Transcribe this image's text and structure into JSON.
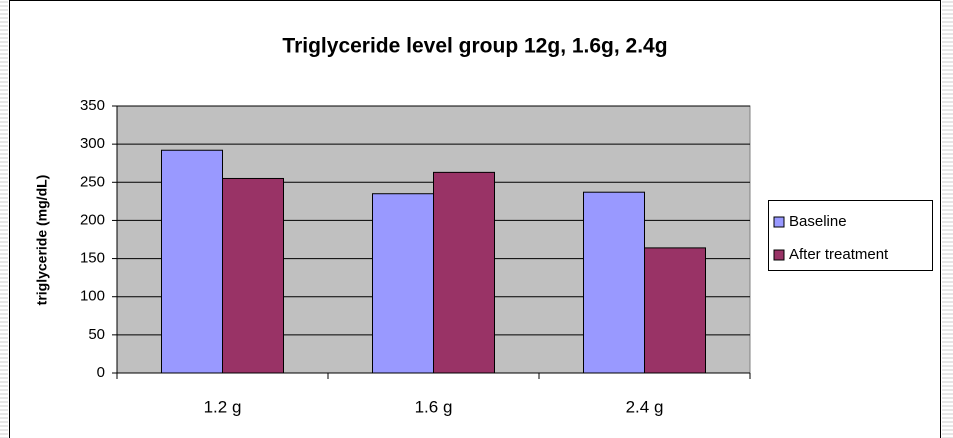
{
  "chart_data": {
    "type": "bar",
    "title": "Triglyceride level group 12g, 1.6g, 2.4g",
    "y_label": "triglyceride (mg/dL)",
    "categories": [
      "1.2 g",
      "1.6 g",
      "2.4 g"
    ],
    "series": [
      {
        "name": "Baseline",
        "color": "#9999ff",
        "values": [
          292,
          235,
          237
        ]
      },
      {
        "name": "After treatment",
        "color": "#993366",
        "values": [
          255,
          263,
          164
        ]
      }
    ],
    "ylim": [
      0,
      350
    ],
    "yticks": [
      0,
      50,
      100,
      150,
      200,
      250,
      300,
      350
    ],
    "grid": true,
    "legend": "right"
  }
}
